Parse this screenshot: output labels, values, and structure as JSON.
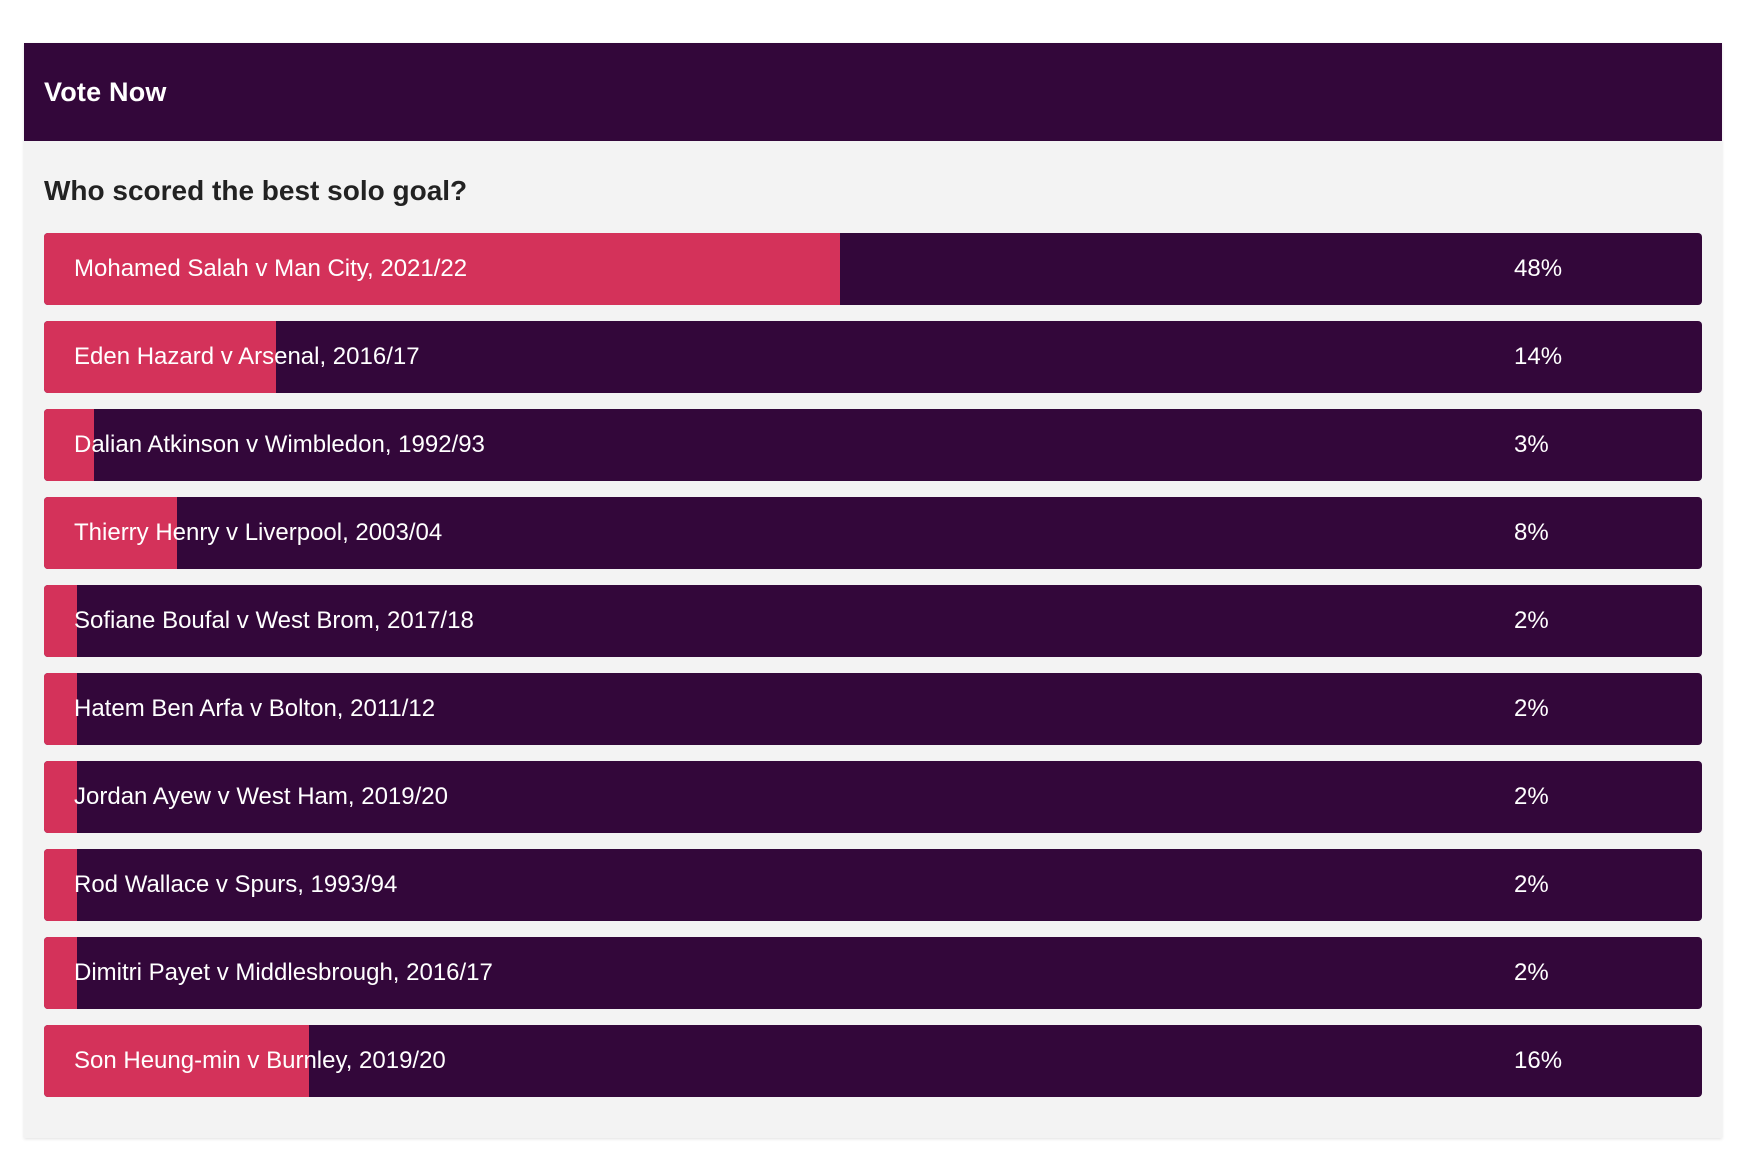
{
  "widget": {
    "title": "Vote Now",
    "question": "Who scored the best solo goal?",
    "colors": {
      "header_bg": "#33073a",
      "bar_bg": "#33073a",
      "bar_fill": "#d4325a",
      "panel_bg": "#f3f3f3"
    },
    "options": [
      {
        "label": "Mohamed Salah v Man City, 2021/22",
        "percent_text": "48%",
        "percent": 48
      },
      {
        "label": "Eden Hazard v Arsenal, 2016/17",
        "percent_text": "14%",
        "percent": 14
      },
      {
        "label": "Dalian Atkinson v Wimbledon, 1992/93",
        "percent_text": "3%",
        "percent": 3
      },
      {
        "label": "Thierry Henry v Liverpool, 2003/04",
        "percent_text": "8%",
        "percent": 8
      },
      {
        "label": "Sofiane Boufal v West Brom, 2017/18",
        "percent_text": "2%",
        "percent": 2
      },
      {
        "label": "Hatem Ben Arfa v Bolton, 2011/12",
        "percent_text": "2%",
        "percent": 2
      },
      {
        "label": "Jordan Ayew v West Ham, 2019/20",
        "percent_text": "2%",
        "percent": 2
      },
      {
        "label": "Rod Wallace v Spurs, 1993/94",
        "percent_text": "2%",
        "percent": 2
      },
      {
        "label": "Dimitri Payet v Middlesbrough, 2016/17",
        "percent_text": "2%",
        "percent": 2
      },
      {
        "label": "Son Heung-min v Burnley, 2019/20",
        "percent_text": "16%",
        "percent": 16
      }
    ]
  }
}
